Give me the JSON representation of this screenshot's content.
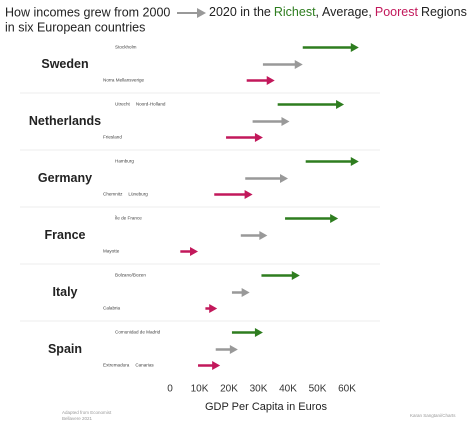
{
  "chart_data": {
    "type": "arrow",
    "title": {
      "before_arrow": "How incomes grew from 2000",
      "after_arrow": "2020 in the",
      "separator": ",",
      "after": "Regions",
      "line2": "in six European countries"
    },
    "categories": [
      "Sweden",
      "Netherlands",
      "Germany",
      "France",
      "Italy",
      "Spain"
    ],
    "series": [
      {
        "name": "Richest",
        "color": "#2e7d1f",
        "start": [
          45000,
          36500,
          46000,
          39000,
          31000,
          21000
        ],
        "end": [
          64000,
          59000,
          64000,
          57000,
          44000,
          31500
        ],
        "labels": [
          [
            "Stockholm"
          ],
          [
            "Utrecht",
            "Noord-Holland"
          ],
          [
            "Hamburg"
          ],
          [
            "Île de France"
          ],
          [
            "Bolzano/Bozen"
          ],
          [
            "Comunidad de Madrid"
          ]
        ]
      },
      {
        "name": "Average",
        "color": "#999999",
        "start": [
          31500,
          28000,
          25500,
          24000,
          21000,
          15500
        ],
        "end": [
          45000,
          40500,
          40000,
          33000,
          27000,
          23000
        ]
      },
      {
        "name": "Poorest",
        "color": "#c2185b",
        "start": [
          26000,
          19000,
          15000,
          3500,
          12000,
          9500
        ],
        "end": [
          35500,
          31500,
          28000,
          9500,
          16000,
          17000
        ],
        "labels": [
          [
            "Norra Mellansverige"
          ],
          [
            "Friesland"
          ],
          [
            "Chemnitz",
            "Lüneburg"
          ],
          [
            "Mayotte"
          ],
          [
            "Calabria"
          ],
          [
            "Extremadura",
            "Canarias"
          ]
        ]
      }
    ],
    "xlim": [
      0,
      65000
    ],
    "xticks": [
      0,
      {
        "value": 10000,
        "label": "10K"
      },
      {
        "value": 20000,
        "label": "20K"
      },
      {
        "value": 30000,
        "label": "30K"
      },
      {
        "value": 40000,
        "label": "40K"
      },
      {
        "value": 50000,
        "label": "50K"
      },
      {
        "value": 60000,
        "label": "60K"
      }
    ],
    "xlabel": "GDP Per Capita in Euros",
    "footnotes": [
      "Adapted from Economist",
      "Bellavere 2021",
      "Karan Sangtani/Charts"
    ]
  }
}
